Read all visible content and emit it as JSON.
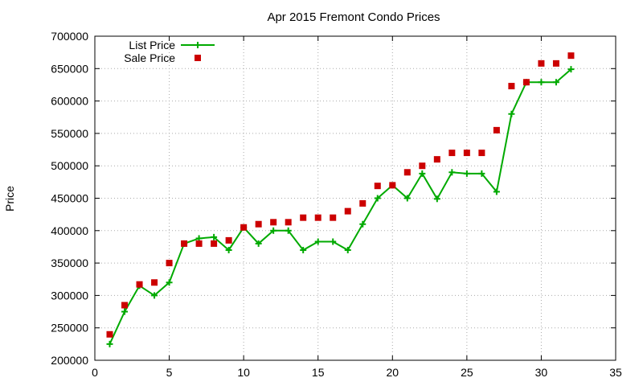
{
  "chart_data": {
    "type": "line",
    "title": "Apr 2015 Fremont Condo Prices",
    "xlabel": "",
    "ylabel": "Price",
    "xlim": [
      0,
      35
    ],
    "ylim": [
      200000,
      700000
    ],
    "x_ticks": [
      0,
      5,
      10,
      15,
      20,
      25,
      30,
      35
    ],
    "y_ticks": [
      200000,
      250000,
      300000,
      350000,
      400000,
      450000,
      500000,
      550000,
      600000,
      650000,
      700000
    ],
    "x_tick_labels": [
      "0",
      "5",
      "10",
      "15",
      "20",
      "25",
      "30",
      "35"
    ],
    "y_tick_labels": [
      "200000",
      "250000",
      "300000",
      "350000",
      "400000",
      "450000",
      "500000",
      "550000",
      "600000",
      "650000",
      "700000"
    ],
    "grid": true,
    "legend_position": "top-left",
    "series": [
      {
        "name": "List Price",
        "style": "line+plus",
        "color": "#00aa00",
        "x": [
          1,
          2,
          3,
          4,
          5,
          6,
          7,
          8,
          9,
          10,
          11,
          12,
          13,
          14,
          15,
          16,
          17,
          18,
          19,
          20,
          21,
          22,
          23,
          24,
          25,
          26,
          27,
          28,
          29,
          30,
          31,
          32
        ],
        "y": [
          225000,
          275000,
          315000,
          300000,
          320000,
          380000,
          388000,
          390000,
          370000,
          405000,
          380000,
          400000,
          400000,
          370000,
          383000,
          383000,
          370000,
          410000,
          450000,
          470000,
          450000,
          488000,
          449000,
          490000,
          488000,
          488000,
          460000,
          580000,
          629000,
          629000,
          629000,
          649000
        ]
      },
      {
        "name": "Sale Price",
        "style": "square",
        "color": "#cc0000",
        "x": [
          1,
          2,
          3,
          4,
          5,
          6,
          7,
          8,
          9,
          10,
          11,
          12,
          13,
          14,
          15,
          16,
          17,
          18,
          19,
          20,
          21,
          22,
          23,
          24,
          25,
          26,
          27,
          28,
          29,
          30,
          31,
          32
        ],
        "y": [
          240000,
          285000,
          317000,
          320000,
          350000,
          380000,
          380000,
          380000,
          385000,
          405000,
          410000,
          413000,
          413000,
          420000,
          420000,
          420000,
          430000,
          442000,
          469000,
          470000,
          490000,
          500000,
          510000,
          520000,
          520000,
          520000,
          555000,
          623000,
          629000,
          658000,
          658000,
          670000
        ]
      }
    ]
  }
}
